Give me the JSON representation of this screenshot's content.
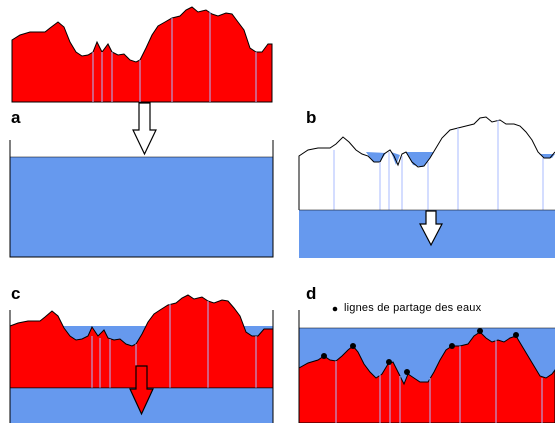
{
  "panels": {
    "a": {
      "label": "a"
    },
    "b": {
      "label": "b"
    },
    "c": {
      "label": "c"
    },
    "d": {
      "label": "d"
    }
  },
  "legend": {
    "text": "lignes de partage des eaux"
  },
  "colors": {
    "terrain": "#ff0000",
    "water": "#6699ee",
    "outline": "#000000",
    "divider": "#aabbff",
    "arrow_outline": "#000000",
    "arrow_fill_white": "#ffffff"
  }
}
